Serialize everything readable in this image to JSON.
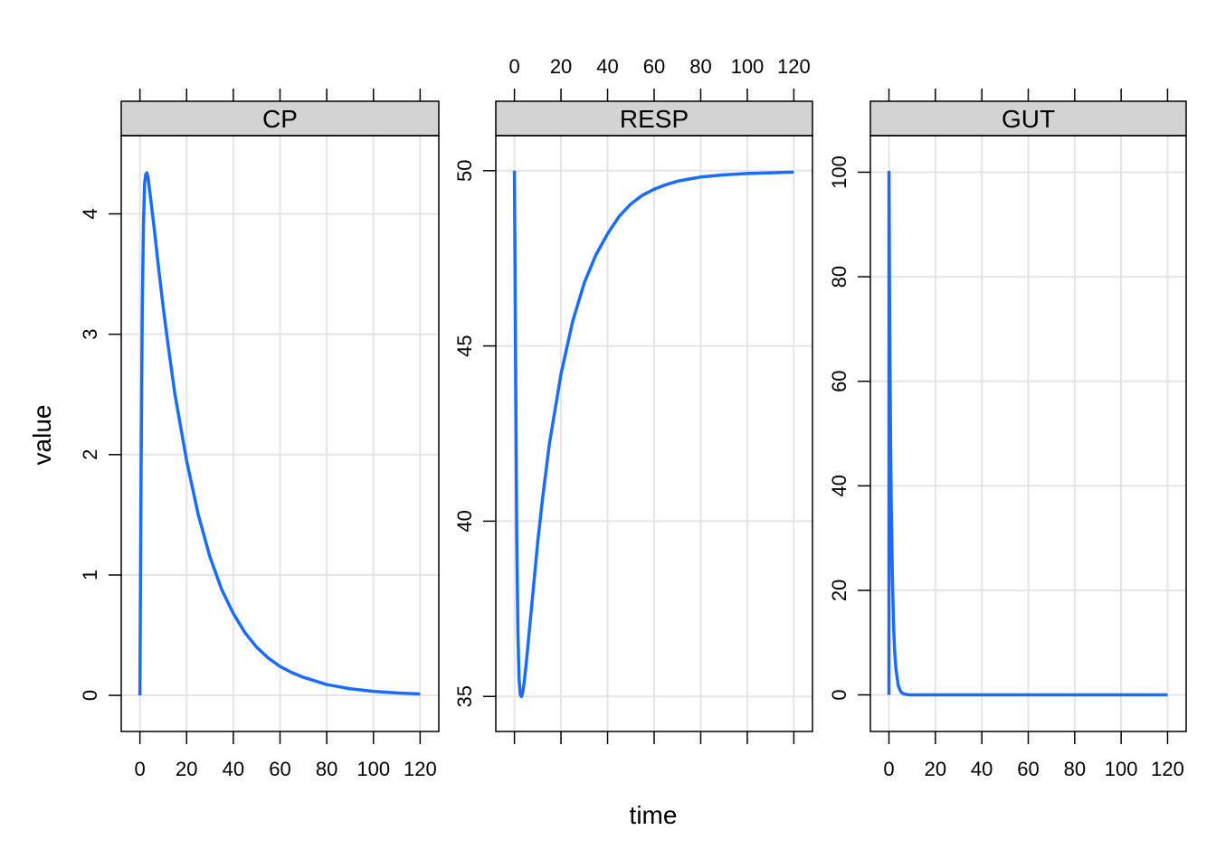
{
  "xlabel": "time",
  "ylabel": "value",
  "colors": {
    "line": "#1a6cff",
    "strip": "#d3d3d3",
    "grid": "#e5e5e5",
    "frame": "#000000"
  },
  "chart_data": [
    {
      "type": "line",
      "title": "CP",
      "xlabel": "time",
      "ylabel": "value",
      "xlim": [
        -8,
        128
      ],
      "ylim": [
        -0.3,
        4.65
      ],
      "x_ticks": [
        0,
        20,
        40,
        60,
        80,
        100,
        120
      ],
      "x_tick_labels": [
        "0",
        "20",
        "40",
        "60",
        "80",
        "100",
        "120"
      ],
      "x_tick_labels_position": "bottom",
      "y_ticks": [
        0,
        1,
        2,
        3,
        4
      ],
      "y_tick_labels": [
        "0",
        "1",
        "2",
        "3",
        "4"
      ],
      "grid": true,
      "series": [
        {
          "x": [
            0,
            0.5,
            1,
            1.5,
            2,
            2.5,
            3,
            3.5,
            4,
            5,
            6,
            8,
            10,
            12,
            15,
            20,
            25,
            30,
            35,
            40,
            45,
            50,
            55,
            60,
            65,
            70,
            80,
            90,
            100,
            110,
            120
          ],
          "y": [
            0,
            1.9,
            3.2,
            3.9,
            4.25,
            4.33,
            4.34,
            4.3,
            4.22,
            4.06,
            3.9,
            3.55,
            3.22,
            2.92,
            2.5,
            1.95,
            1.5,
            1.15,
            0.88,
            0.68,
            0.52,
            0.4,
            0.31,
            0.24,
            0.19,
            0.15,
            0.09,
            0.055,
            0.033,
            0.02,
            0.012
          ]
        }
      ]
    },
    {
      "type": "line",
      "title": "RESP",
      "xlabel": "time",
      "ylabel": "value",
      "xlim": [
        -8,
        128
      ],
      "ylim": [
        34,
        51
      ],
      "x_ticks": [
        0,
        20,
        40,
        60,
        80,
        100,
        120
      ],
      "x_tick_labels": [
        "0",
        "20",
        "40",
        "60",
        "80",
        "100",
        "120"
      ],
      "x_tick_labels_position": "top",
      "y_ticks": [
        35,
        40,
        45,
        50
      ],
      "y_tick_labels": [
        "35",
        "40",
        "45",
        "50"
      ],
      "grid": true,
      "series": [
        {
          "x": [
            0,
            0.5,
            1,
            1.5,
            2,
            2.5,
            3,
            3.5,
            4,
            5,
            6,
            8,
            10,
            12,
            15,
            20,
            25,
            30,
            35,
            40,
            45,
            50,
            55,
            60,
            65,
            70,
            80,
            90,
            100,
            110,
            120
          ],
          "y": [
            50,
            44.5,
            39.5,
            36.8,
            35.5,
            35.05,
            35.0,
            35.1,
            35.3,
            35.9,
            36.6,
            38.0,
            39.4,
            40.6,
            42.2,
            44.2,
            45.7,
            46.8,
            47.6,
            48.2,
            48.7,
            49.05,
            49.3,
            49.47,
            49.6,
            49.7,
            49.82,
            49.88,
            49.92,
            49.94,
            49.96
          ]
        }
      ]
    },
    {
      "type": "line",
      "title": "GUT",
      "xlabel": "time",
      "ylabel": "value",
      "xlim": [
        -8,
        128
      ],
      "ylim": [
        -7,
        107
      ],
      "x_ticks": [
        0,
        20,
        40,
        60,
        80,
        100,
        120
      ],
      "x_tick_labels": [
        "0",
        "20",
        "40",
        "60",
        "80",
        "100",
        "120"
      ],
      "x_tick_labels_position": "bottom",
      "y_ticks": [
        0,
        20,
        40,
        60,
        80,
        100
      ],
      "y_tick_labels": [
        "0",
        "20",
        "40",
        "60",
        "80",
        "100"
      ],
      "grid": true,
      "series": [
        {
          "x": [
            0,
            0.01,
            0.25,
            0.5,
            0.75,
            1,
            1.5,
            2,
            2.5,
            3,
            4,
            5,
            6,
            8,
            10,
            20,
            40,
            60,
            80,
            100,
            120
          ],
          "y": [
            0,
            100,
            77,
            60,
            46,
            36,
            22,
            13,
            8,
            5,
            1.8,
            0.7,
            0.25,
            0.03,
            0,
            0,
            0,
            0,
            0,
            0,
            0
          ]
        }
      ]
    }
  ]
}
